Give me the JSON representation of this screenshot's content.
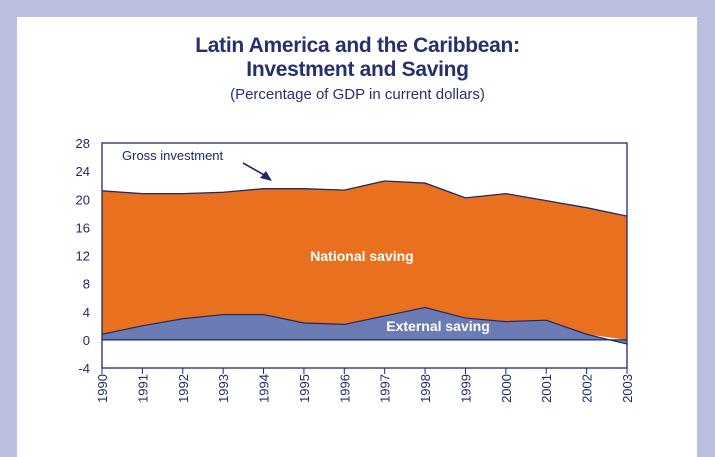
{
  "title_line1": "Latin America and the Caribbean:",
  "title_line2": "Investment and Saving",
  "subtitle": "(Percentage of GDP in current dollars)",
  "chart_data": {
    "type": "area",
    "x": [
      "1990",
      "1991",
      "1992",
      "1993",
      "1994",
      "1995",
      "1996",
      "1997",
      "1998",
      "1999",
      "2000",
      "2001",
      "2002",
      "2003"
    ],
    "series": [
      {
        "name": "Gross investment",
        "values": [
          21.2,
          20.8,
          20.8,
          21.0,
          21.5,
          21.5,
          21.3,
          22.6,
          22.3,
          20.2,
          20.8,
          19.8,
          18.8,
          17.6
        ],
        "color": "#e8701e"
      },
      {
        "name": "External saving",
        "values": [
          0.8,
          2.0,
          3.0,
          3.6,
          3.6,
          2.4,
          2.2,
          3.4,
          4.6,
          3.1,
          2.6,
          2.8,
          0.8,
          -0.6
        ],
        "color": "#6a7cb3"
      }
    ],
    "region_labels": {
      "national": "National saving",
      "external": "External saving"
    },
    "annotation": "Gross investment",
    "ylim": [
      -4,
      28
    ],
    "yticks": [
      -4,
      0,
      4,
      8,
      12,
      16,
      20,
      24,
      28
    ],
    "grid": false
  }
}
